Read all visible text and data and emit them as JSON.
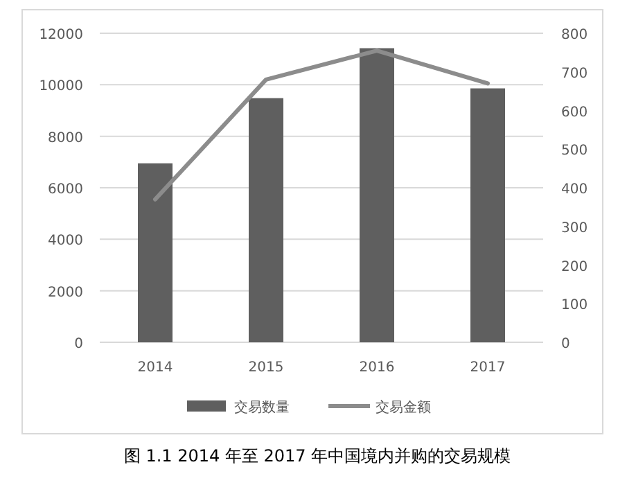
{
  "chart_data": {
    "type": "bar",
    "categories": [
      "2014",
      "2015",
      "2016",
      "2017"
    ],
    "series": [
      {
        "name": "交易数量",
        "color": "#5f5f5f",
        "values": [
          6950,
          9480,
          11420,
          9860
        ]
      },
      {
        "name": "交易金额",
        "type": "line",
        "axis": "y2",
        "color": "#8c8c8c",
        "values": [
          370,
          680,
          755,
          670
        ]
      }
    ],
    "ylim": [
      0,
      12000
    ],
    "yticks": [
      0,
      2000,
      4000,
      6000,
      8000,
      10000,
      12000
    ],
    "y2lim": [
      0,
      800
    ],
    "y2ticks": [
      0,
      100,
      200,
      300,
      400,
      500,
      600,
      700,
      800
    ],
    "grid": "y",
    "legend": "bottom",
    "annotations": [
      "图 1.1  2014 年至 2017 年中国境内并购的交易规模"
    ]
  }
}
